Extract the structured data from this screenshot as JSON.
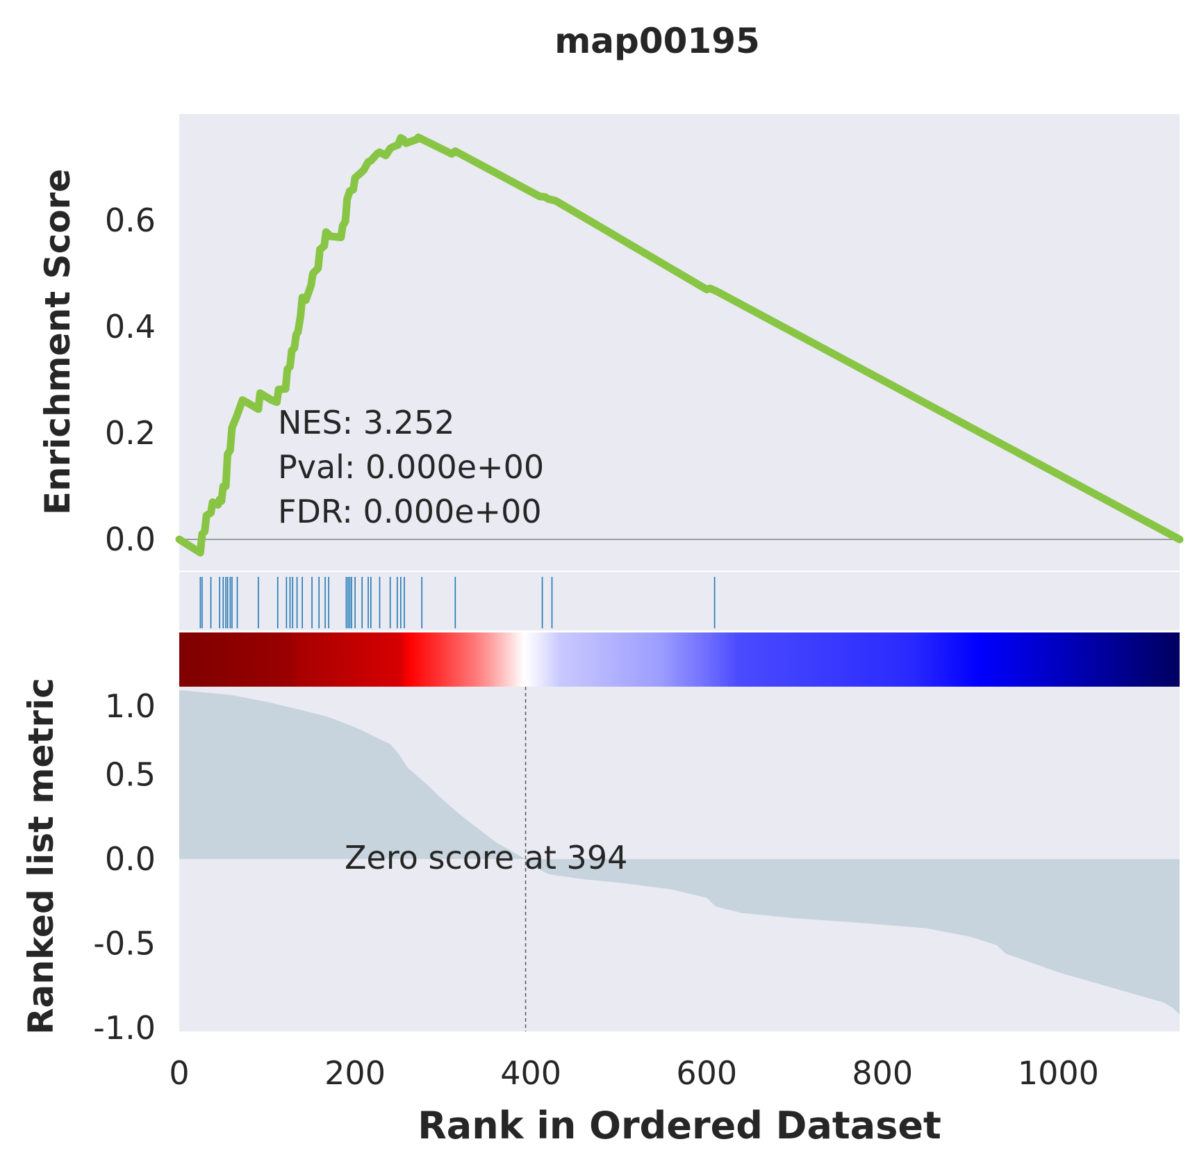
{
  "chart_data": {
    "title": "map00195",
    "xlabel": "Rank in Ordered Dataset",
    "xlim": [
      0,
      1138
    ],
    "x_ticks": [
      {
        "value": 0,
        "label": "0"
      },
      {
        "value": 200,
        "label": "200"
      },
      {
        "value": 400,
        "label": "400"
      },
      {
        "value": 600,
        "label": "600"
      },
      {
        "value": 800,
        "label": "800"
      },
      {
        "value": 1000,
        "label": "1000"
      }
    ],
    "colors": {
      "background": "#eaeaf2",
      "es_line": "#88c544",
      "hits": "#1f77b4",
      "metric_fill": "#c8d4dd",
      "zero_line": "#808080",
      "divider": "#ffffff",
      "text": "#262626"
    },
    "enrichment_panel": {
      "type": "line",
      "ylabel": "Enrichment Score",
      "ylim": [
        -0.06,
        0.8
      ],
      "y_ticks": [
        {
          "value": 0.0,
          "label": "0.0"
        },
        {
          "value": 0.2,
          "label": "0.2"
        },
        {
          "value": 0.4,
          "label": "0.4"
        },
        {
          "value": 0.6,
          "label": "0.6"
        }
      ],
      "annotation": [
        "NES: 3.252",
        "Pval: 0.000e+00",
        "FDR: 0.000e+00"
      ],
      "x": [
        0,
        24,
        26,
        29,
        31,
        36,
        38,
        44,
        46,
        48,
        50,
        53,
        55,
        58,
        60,
        65,
        72,
        90,
        92,
        105,
        111,
        113,
        121,
        123,
        126,
        128,
        131,
        133,
        135,
        138,
        140,
        144,
        150,
        152,
        158,
        160,
        165,
        167,
        172,
        184,
        186,
        189,
        191,
        194,
        198,
        200,
        207,
        210,
        215,
        218,
        225,
        228,
        235,
        240,
        243,
        249,
        252,
        255,
        258,
        270,
        272,
        310,
        314,
        410,
        416,
        420,
        428,
        600,
        604,
        612,
        1138
      ],
      "y": [
        0.0,
        -0.025,
        0.01,
        0.015,
        0.045,
        0.05,
        0.07,
        0.065,
        0.075,
        0.072,
        0.1,
        0.1,
        0.16,
        0.168,
        0.21,
        0.23,
        0.262,
        0.245,
        0.275,
        0.262,
        0.258,
        0.282,
        0.283,
        0.32,
        0.325,
        0.355,
        0.36,
        0.385,
        0.39,
        0.42,
        0.455,
        0.45,
        0.478,
        0.5,
        0.51,
        0.545,
        0.552,
        0.578,
        0.57,
        0.568,
        0.59,
        0.598,
        0.64,
        0.655,
        0.658,
        0.68,
        0.69,
        0.695,
        0.71,
        0.712,
        0.725,
        0.728,
        0.722,
        0.735,
        0.738,
        0.742,
        0.755,
        0.752,
        0.745,
        0.752,
        0.756,
        0.725,
        0.73,
        0.645,
        0.644,
        0.64,
        0.637,
        0.47,
        0.472,
        0.466,
        0.0
      ]
    },
    "hits_panel": {
      "type": "hits",
      "positions": [
        24,
        26,
        36,
        46,
        50,
        53,
        55,
        58,
        60,
        66,
        90,
        112,
        122,
        126,
        129,
        134,
        140,
        151,
        159,
        166,
        170,
        190,
        192,
        194,
        196,
        200,
        208,
        215,
        218,
        228,
        240,
        248,
        252,
        256,
        276,
        314,
        413,
        424,
        609
      ]
    },
    "color_bar": {
      "stops": [
        {
          "offset": 0,
          "color": "#7f0000"
        },
        {
          "offset": 0.11,
          "color": "#9a0000"
        },
        {
          "offset": 0.12,
          "color": "#a80000"
        },
        {
          "offset": 0.22,
          "color": "#d60000"
        },
        {
          "offset": 0.23,
          "color": "#ff0000"
        },
        {
          "offset": 0.26,
          "color": "#ff3333"
        },
        {
          "offset": 0.295,
          "color": "#ff7777"
        },
        {
          "offset": 0.31,
          "color": "#ff9b9b"
        },
        {
          "offset": 0.335,
          "color": "#ffe3e3"
        },
        {
          "offset": 0.345,
          "color": "#ffffff"
        },
        {
          "offset": 0.36,
          "color": "#ebebff"
        },
        {
          "offset": 0.38,
          "color": "#c9c9ff"
        },
        {
          "offset": 0.48,
          "color": "#9d9dff"
        },
        {
          "offset": 0.53,
          "color": "#6c6cff"
        },
        {
          "offset": 0.56,
          "color": "#4a4aff"
        },
        {
          "offset": 0.73,
          "color": "#2a2aff"
        },
        {
          "offset": 0.8,
          "color": "#0000ff"
        },
        {
          "offset": 0.88,
          "color": "#0000c0"
        },
        {
          "offset": 1,
          "color": "#000060"
        }
      ]
    },
    "metric_panel": {
      "type": "area",
      "ylabel": "Ranked list metric",
      "ylim": [
        -1.02,
        1.02
      ],
      "y_ticks": [
        {
          "value": 1.0,
          "label": "1.0"
        },
        {
          "value": 0.5,
          "label": "0.5"
        },
        {
          "value": 0.0,
          "label": "0.0"
        },
        {
          "value": -0.5,
          "label": "-0.5"
        },
        {
          "value": -1.0,
          "label": "-1.0"
        }
      ],
      "zero_cross": 394,
      "annotation": "Zero score at 394",
      "x": [
        0,
        20,
        60,
        100,
        140,
        170,
        200,
        220,
        240,
        250,
        260,
        280,
        300,
        320,
        340,
        360,
        380,
        394,
        394,
        420,
        460,
        500,
        560,
        600,
        610,
        640,
        700,
        780,
        850,
        900,
        930,
        940,
        1000,
        1060,
        1100,
        1120,
        1130,
        1138
      ],
      "y": [
        1.0,
        0.99,
        0.97,
        0.93,
        0.88,
        0.84,
        0.78,
        0.73,
        0.68,
        0.62,
        0.54,
        0.45,
        0.35,
        0.26,
        0.18,
        0.1,
        0.04,
        0.0,
        -0.02,
        -0.09,
        -0.12,
        -0.14,
        -0.18,
        -0.23,
        -0.28,
        -0.32,
        -0.35,
        -0.38,
        -0.41,
        -0.46,
        -0.51,
        -0.56,
        -0.67,
        -0.76,
        -0.82,
        -0.85,
        -0.88,
        -0.92
      ]
    }
  }
}
